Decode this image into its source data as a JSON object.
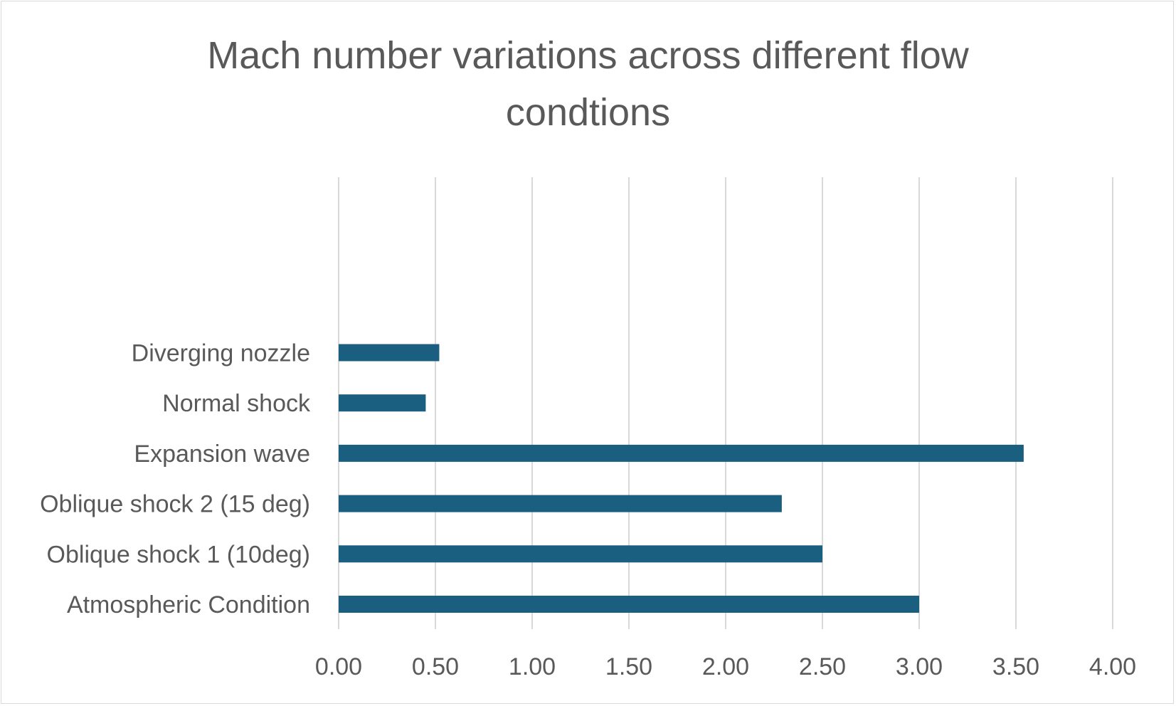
{
  "chart_data": {
    "type": "bar",
    "orientation": "horizontal",
    "title": "Mach number variations across different flow condtions",
    "title_lines": [
      "Mach number variations across different flow",
      "condtions"
    ],
    "categories": [
      "Atmospheric Condition",
      "Oblique shock 1 (10deg)",
      "Oblique shock 2 (15 deg)",
      "Expansion wave",
      "Normal shock",
      "Diverging nozzle"
    ],
    "values": [
      3.0,
      2.5,
      2.29,
      3.54,
      0.45,
      0.52
    ],
    "xlabel": "",
    "ylabel": "",
    "xlim": [
      0,
      4
    ],
    "xticks": [
      "0.00",
      "0.50",
      "1.00",
      "1.50",
      "2.00",
      "2.50",
      "3.00",
      "3.50",
      "4.00"
    ],
    "grid": "vertical",
    "legend": "none",
    "bar_color": "#1a5e80"
  }
}
